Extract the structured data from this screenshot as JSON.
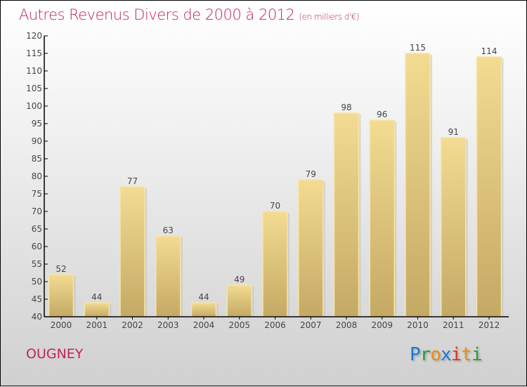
{
  "chart_data": {
    "type": "bar",
    "title": "Autres Revenus Divers de 2000 à 2012",
    "subtitle": "(en milliers d'€)",
    "xlabel": "",
    "ylabel": "",
    "categories": [
      "2000",
      "2001",
      "2002",
      "2003",
      "2004",
      "2005",
      "2006",
      "2007",
      "2008",
      "2009",
      "2010",
      "2011",
      "2012"
    ],
    "values": [
      52,
      44,
      77,
      63,
      44,
      49,
      70,
      79,
      98,
      96,
      115,
      91,
      114
    ],
    "ylim": [
      40,
      120
    ],
    "yticks": [
      40,
      45,
      50,
      55,
      60,
      65,
      70,
      75,
      80,
      85,
      90,
      95,
      100,
      105,
      110,
      115,
      120
    ],
    "grid": false,
    "bar_color": "#e8d08a",
    "title_color": "#c0245a"
  },
  "footer": {
    "city": "OUGNEY",
    "logo": {
      "letters": [
        "P",
        "r",
        "o",
        "x",
        "i",
        "t",
        "i"
      ],
      "colors": [
        "#1a7ad4",
        "#2a9a3a",
        "#f08a10",
        "#1a7ad4",
        "#e03020",
        "#f08a10",
        "#2a9a3a"
      ]
    }
  }
}
